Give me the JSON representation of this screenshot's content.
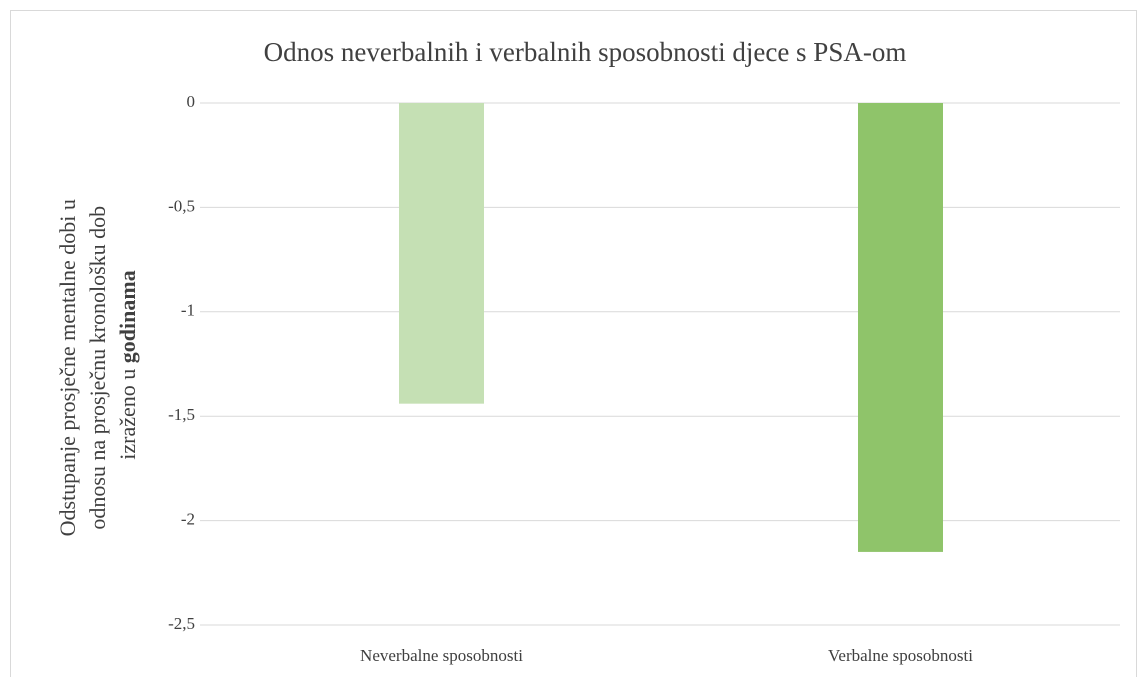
{
  "chart_data": {
    "type": "bar",
    "title": "Odnos neverbalnih i verbalnih sposobnosti djece s PSA-om",
    "y_label": [
      "Odstupanje prosječne mentalne dobi u",
      "odnosu na prosječnu kronološku dob",
      "izraženo u",
      "godinama"
    ],
    "categories": [
      "Neverbalne sposobnosti",
      "Verbalne sposobnosti"
    ],
    "values": [
      -1.44,
      -2.15
    ],
    "colors": [
      "#c5e0b4",
      "#8fc46a"
    ],
    "ylim": [
      -2.5,
      0
    ],
    "yticks": [
      0,
      {
        "value": -0.5,
        "label": "-0,5"
      },
      -1,
      {
        "value": -1.5,
        "label": "-1,5"
      },
      -2,
      {
        "value": -2.5,
        "label": "-2,5"
      }
    ],
    "grid": true
  }
}
